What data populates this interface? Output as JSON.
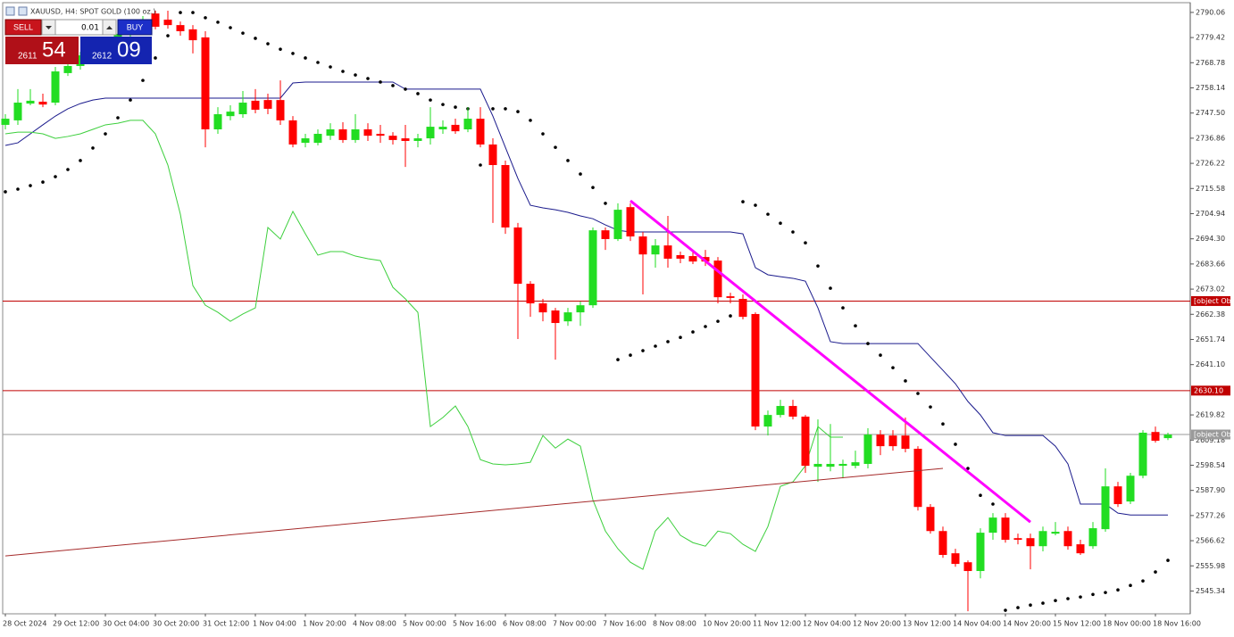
{
  "chart_data": {
    "type": "candlestick",
    "title": "XAUUSD, H4:  SPOT GOLD (100 oz.)",
    "categories": [
      "28 Oct 2024",
      null,
      null,
      null,
      "29 Oct 12:00",
      null,
      null,
      null,
      "30 Oct 04:00",
      null,
      null,
      null,
      "30 Oct 20:00",
      null,
      null,
      null,
      "31 Oct 12:00",
      null,
      null,
      null,
      "1 Nov 04:00",
      null,
      null,
      null,
      "1 Nov 20:00",
      null,
      null,
      null,
      "4 Nov 08:00",
      null,
      null,
      null,
      "5 Nov 00:00",
      null,
      null,
      null,
      "5 Nov 16:00",
      null,
      null,
      null,
      "6 Nov 08:00",
      null,
      null,
      null,
      "7 Nov 00:00",
      null,
      null,
      null,
      "7 Nov 16:00",
      null,
      null,
      null,
      "8 Nov 08:00",
      null,
      null,
      null,
      "10 Nov 20:00",
      null,
      null,
      null,
      "11 Nov 12:00",
      null,
      null,
      null,
      "12 Nov 04:00",
      null,
      null,
      null,
      "12 Nov 20:00",
      null,
      null,
      null,
      "13 Nov 12:00",
      null,
      null,
      null,
      "14 Nov 04:00",
      null,
      null,
      null,
      "14 Nov 20:00",
      null,
      null,
      null,
      "15 Nov 12:00",
      null,
      null,
      null,
      "18 Nov 00:00",
      null,
      null,
      null,
      "18 Nov 16:00",
      null
    ],
    "ohlc": {
      "open": [
        2742.5,
        2744.4,
        2751.5,
        2752.3,
        2751.9,
        2764.4,
        2767.4,
        2771.9,
        2775.7,
        2778.3,
        2781.0,
        2784.0,
        2789.6,
        2787.0,
        2784.7,
        2782.9,
        2779.5,
        2740.6,
        2746.2,
        2747.0,
        2752.7,
        2753.0,
        2753.0,
        2744.4,
        2734.9,
        2734.9,
        2737.9,
        2740.6,
        2736.1,
        2740.6,
        2738.7,
        2737.9,
        2736.8,
        2735.7,
        2736.8,
        2740.6,
        2742.5,
        2740.6,
        2745.1,
        2734.2,
        2725.5,
        2699.1,
        2675.3,
        2667.0,
        2664.0,
        2659.4,
        2663.2,
        2666.2,
        2697.9,
        2694.2,
        2707.7,
        2695.3,
        2687.7,
        2691.5,
        2687.4,
        2687.0,
        2686.6,
        2685.1,
        2670.0,
        2668.9,
        2662.5,
        2614.9,
        2619.8,
        2623.6,
        2619.1,
        2597.9,
        2597.9,
        2598.3,
        2598.3,
        2599.1,
        2611.5,
        2611.1,
        2611.1,
        2605.5,
        2580.9,
        2570.7,
        2561.3,
        2557.5,
        2553.8,
        2570.0,
        2576.4,
        2567.7,
        2567.7,
        2564.3,
        2569.6,
        2570.7,
        2565.1,
        2564.3,
        2571.5,
        2589.6,
        2583.2,
        2594.1,
        2612.6,
        2610.0
      ],
      "high": [
        2747.0,
        2757.6,
        2757.6,
        2755.7,
        2767.0,
        2768.9,
        2773.4,
        2776.8,
        2779.8,
        2782.5,
        2785.5,
        2788.5,
        2790.8,
        2790.8,
        2786.2,
        2784.7,
        2782.1,
        2750.0,
        2750.8,
        2756.8,
        2757.6,
        2755.7,
        2761.3,
        2746.2,
        2738.7,
        2740.6,
        2743.2,
        2743.6,
        2747.0,
        2743.2,
        2742.5,
        2739.4,
        2742.5,
        2738.7,
        2750.0,
        2744.4,
        2745.1,
        2750.0,
        2750.0,
        2736.8,
        2727.4,
        2701.0,
        2676.4,
        2668.9,
        2665.1,
        2665.1,
        2667.7,
        2699.1,
        2699.1,
        2709.3,
        2709.3,
        2697.2,
        2694.2,
        2704.0,
        2688.9,
        2688.5,
        2689.6,
        2686.6,
        2671.5,
        2670.8,
        2663.2,
        2621.7,
        2626.2,
        2626.2,
        2619.8,
        2617.9,
        2616.0,
        2600.9,
        2604.7,
        2614.2,
        2613.4,
        2613.4,
        2618.7,
        2606.6,
        2582.1,
        2572.6,
        2563.2,
        2558.3,
        2571.9,
        2578.3,
        2578.3,
        2569.6,
        2569.6,
        2572.6,
        2574.5,
        2572.6,
        2567.0,
        2574.5,
        2597.2,
        2591.5,
        2595.3,
        2613.4,
        2614.9,
        2612.3
      ],
      "low": [
        2740.6,
        2742.5,
        2750.8,
        2750.0,
        2750.8,
        2763.2,
        2765.9,
        2770.4,
        2774.2,
        2776.8,
        2779.5,
        2782.5,
        2782.9,
        2783.2,
        2780.2,
        2772.7,
        2733.0,
        2738.7,
        2744.4,
        2745.5,
        2747.4,
        2747.0,
        2742.5,
        2733.0,
        2733.0,
        2733.8,
        2736.1,
        2734.9,
        2734.9,
        2735.7,
        2734.9,
        2734.2,
        2724.7,
        2733.0,
        2734.2,
        2738.7,
        2738.7,
        2739.4,
        2733.0,
        2701.0,
        2696.4,
        2651.9,
        2661.3,
        2659.4,
        2643.2,
        2657.5,
        2657.5,
        2665.1,
        2689.6,
        2693.4,
        2693.4,
        2670.8,
        2682.1,
        2682.1,
        2684.0,
        2683.6,
        2682.8,
        2667.0,
        2667.0,
        2660.2,
        2613.4,
        2611.1,
        2618.7,
        2617.9,
        2595.3,
        2591.5,
        2596.0,
        2593.0,
        2597.2,
        2597.2,
        2602.8,
        2604.7,
        2604.0,
        2579.4,
        2569.6,
        2559.4,
        2555.6,
        2536.8,
        2550.7,
        2567.0,
        2565.8,
        2565.1,
        2554.5,
        2562.1,
        2568.9,
        2562.8,
        2560.6,
        2563.2,
        2570.4,
        2580.9,
        2582.1,
        2593.0,
        2608.1,
        2609.2
      ],
      "close": [
        2745.1,
        2751.9,
        2752.7,
        2751.1,
        2765.1,
        2767.4,
        2771.9,
        2775.7,
        2778.3,
        2781.0,
        2784.0,
        2787.0,
        2784.0,
        2784.7,
        2782.1,
        2778.3,
        2740.6,
        2747.0,
        2748.1,
        2751.9,
        2748.9,
        2749.3,
        2744.4,
        2734.2,
        2736.8,
        2738.7,
        2740.6,
        2736.1,
        2740.6,
        2737.9,
        2737.9,
        2736.1,
        2735.7,
        2736.8,
        2741.7,
        2741.7,
        2739.8,
        2745.1,
        2734.2,
        2725.5,
        2699.1,
        2675.3,
        2667.0,
        2663.2,
        2658.7,
        2663.2,
        2666.2,
        2697.9,
        2694.2,
        2706.6,
        2695.3,
        2687.7,
        2691.5,
        2685.9,
        2685.9,
        2684.7,
        2684.7,
        2669.6,
        2669.3,
        2661.3,
        2614.9,
        2619.8,
        2623.6,
        2619.1,
        2598.3,
        2599.1,
        2599.1,
        2599.1,
        2599.8,
        2611.5,
        2606.6,
        2606.6,
        2605.5,
        2580.9,
        2570.7,
        2560.6,
        2556.8,
        2553.8,
        2570.0,
        2576.4,
        2567.0,
        2567.0,
        2564.3,
        2570.7,
        2570.4,
        2564.3,
        2561.3,
        2571.9,
        2589.6,
        2582.1,
        2594.1,
        2612.3,
        2608.9,
        2611.5
      ]
    },
    "up_color": "#22dd22",
    "down_color": "#ff0000",
    "overlays": [
      {
        "type": "line",
        "color": "#1a1a8c",
        "values": [
          2733.8,
          2734.9,
          2738.7,
          2742.5,
          2746.2,
          2749.3,
          2751.5,
          2753.0,
          2753.8,
          2753.8,
          2753.8,
          2753.8,
          2753.8,
          2753.8,
          2753.8,
          2753.8,
          2753.8,
          2753.8,
          2753.8,
          2753.8,
          2753.8,
          2753.8,
          2753.8,
          2760.2,
          2760.6,
          2760.6,
          2760.6,
          2760.6,
          2760.6,
          2760.6,
          2760.6,
          2760.6,
          2757.6,
          2757.6,
          2757.6,
          2757.6,
          2757.6,
          2757.6,
          2757.6,
          2746.2,
          2733.0,
          2719.8,
          2708.5,
          2707.4,
          2706.6,
          2705.5,
          2704.0,
          2702.8,
          2700.2,
          2697.9,
          2697.2,
          2697.2,
          2697.2,
          2697.2,
          2697.2,
          2697.2,
          2697.2,
          2697.2,
          2697.2,
          2696.4,
          2682.1,
          2679.1,
          2678.3,
          2677.6,
          2676.4,
          2665.1,
          2650.8,
          2650.0,
          2650.0,
          2650.0,
          2650.0,
          2650.0,
          2650.0,
          2650.0,
          2644.3,
          2638.7,
          2633.0,
          2625.5,
          2619.8,
          2612.3,
          2611.1,
          2611.1,
          2611.1,
          2611.1,
          2606.6,
          2599.1,
          2582.1,
          2582.1,
          2582.1,
          2578.3,
          2577.5,
          2577.5,
          2577.5,
          2577.5
        ]
      },
      {
        "type": "line",
        "color": "#3ccf3c",
        "values": [
          2738.7,
          2739.4,
          2739.4,
          2738.7,
          2736.8,
          2737.6,
          2738.7,
          2740.6,
          2742.5,
          2743.2,
          2744.4,
          2744.4,
          2738.7,
          2725.5,
          2704.7,
          2674.5,
          2666.2,
          2663.2,
          2659.4,
          2662.5,
          2665.1,
          2699.1,
          2694.2,
          2705.9,
          2696.4,
          2687.4,
          2688.9,
          2688.9,
          2687.0,
          2685.9,
          2685.1,
          2673.8,
          2668.9,
          2663.2,
          2614.9,
          2618.7,
          2623.6,
          2614.9,
          2600.9,
          2599.1,
          2598.7,
          2599.1,
          2599.8,
          2611.1,
          2605.8,
          2609.6,
          2606.6,
          2583.9,
          2570.7,
          2563.2,
          2557.5,
          2554.5,
          2570.7,
          2576.4,
          2568.9,
          2565.8,
          2564.3,
          2570.7,
          2569.6,
          2565.1,
          2562.1,
          2572.6,
          2589.6,
          2591.5,
          2598.3,
          2614.9,
          2610.4,
          2610.4,
          null,
          null,
          null,
          null,
          null,
          null,
          null,
          null,
          null,
          null,
          null,
          null,
          null,
          null,
          null,
          null,
          null,
          null,
          null,
          null,
          null,
          null,
          null,
          null,
          null,
          null
        ]
      },
      {
        "type": "dots",
        "color": "#000000",
        "values": [
          2714.2,
          2715.3,
          2716.8,
          2718.3,
          2720.6,
          2723.6,
          2727.4,
          2732.7,
          2738.7,
          2745.5,
          2753.0,
          2761.3,
          2770.8,
          2780.2,
          2790.0,
          2790.0,
          2787.8,
          2785.9,
          2783.6,
          2781.3,
          2779.1,
          2776.8,
          2774.5,
          2772.7,
          2770.8,
          2768.9,
          2767.0,
          2765.1,
          2763.6,
          2762.1,
          2760.6,
          2759.1,
          2757.6,
          2755.7,
          2753.0,
          2751.1,
          2750.0,
          2749.3,
          2725.5,
          2749.3,
          2749.3,
          2748.1,
          2744.4,
          2738.7,
          2733.0,
          2727.4,
          2721.7,
          2716.0,
          2709.3,
          2643.2,
          2645.1,
          2647.0,
          2648.9,
          2650.8,
          2652.6,
          2654.9,
          2657.2,
          2659.4,
          2661.7,
          2710.0,
          2708.5,
          2704.7,
          2700.9,
          2697.2,
          2692.6,
          2682.8,
          2673.4,
          2665.1,
          2657.5,
          2650.0,
          2645.1,
          2639.8,
          2634.2,
          2628.9,
          2623.2,
          2616.0,
          2607.4,
          2597.2,
          2585.8,
          2582.1,
          2537.2,
          2538.3,
          2539.4,
          2540.2,
          2541.3,
          2542.1,
          2542.8,
          2543.9,
          2544.7,
          2545.8,
          2547.7,
          2549.6,
          2553.4,
          2558.3
        ]
      },
      {
        "type": "segment",
        "color": "#a52a2a",
        "width": 1,
        "x": [
          0,
          75
        ],
        "values": [
          2560.2,
          2597.2
        ]
      },
      {
        "type": "segment",
        "color": "#ff00ff",
        "width": 3,
        "x": [
          50,
          82
        ],
        "values": [
          2710.4,
          2574.5
        ]
      }
    ],
    "levels": [
      {
        "value": 2667.98,
        "color": "#c00000"
      },
      {
        "value": 2630.1,
        "label": "2630.10",
        "color": "#c00000"
      },
      {
        "value": 2611.54,
        "color": "#9a9a9a"
      }
    ],
    "ylim": [
      2535.7,
      2793.8
    ],
    "yticks": [
      2790.06,
      2779.42,
      2768.78,
      2758.14,
      {
        "value": 2747.5,
        "label": "2747.50"
      },
      2736.86,
      2726.22,
      2715.58,
      2704.94,
      {
        "value": 2694.3,
        "label": "2694.30"
      },
      2683.66,
      2673.02,
      2662.38,
      2651.74,
      {
        "value": 2641.1,
        "label": "2641.10"
      },
      2619.82,
      2609.18,
      2598.54,
      {
        "value": 2587.9,
        "label": "2587.90"
      },
      2577.26,
      2566.62,
      2555.98,
      2545.34
    ],
    "grid": false
  },
  "panel": {
    "sell": "SELL",
    "buy": "BUY",
    "lot": "0.01",
    "bid": "2611",
    "bid_pips": "54",
    "ask": "2612",
    "ask_pips": "09"
  }
}
